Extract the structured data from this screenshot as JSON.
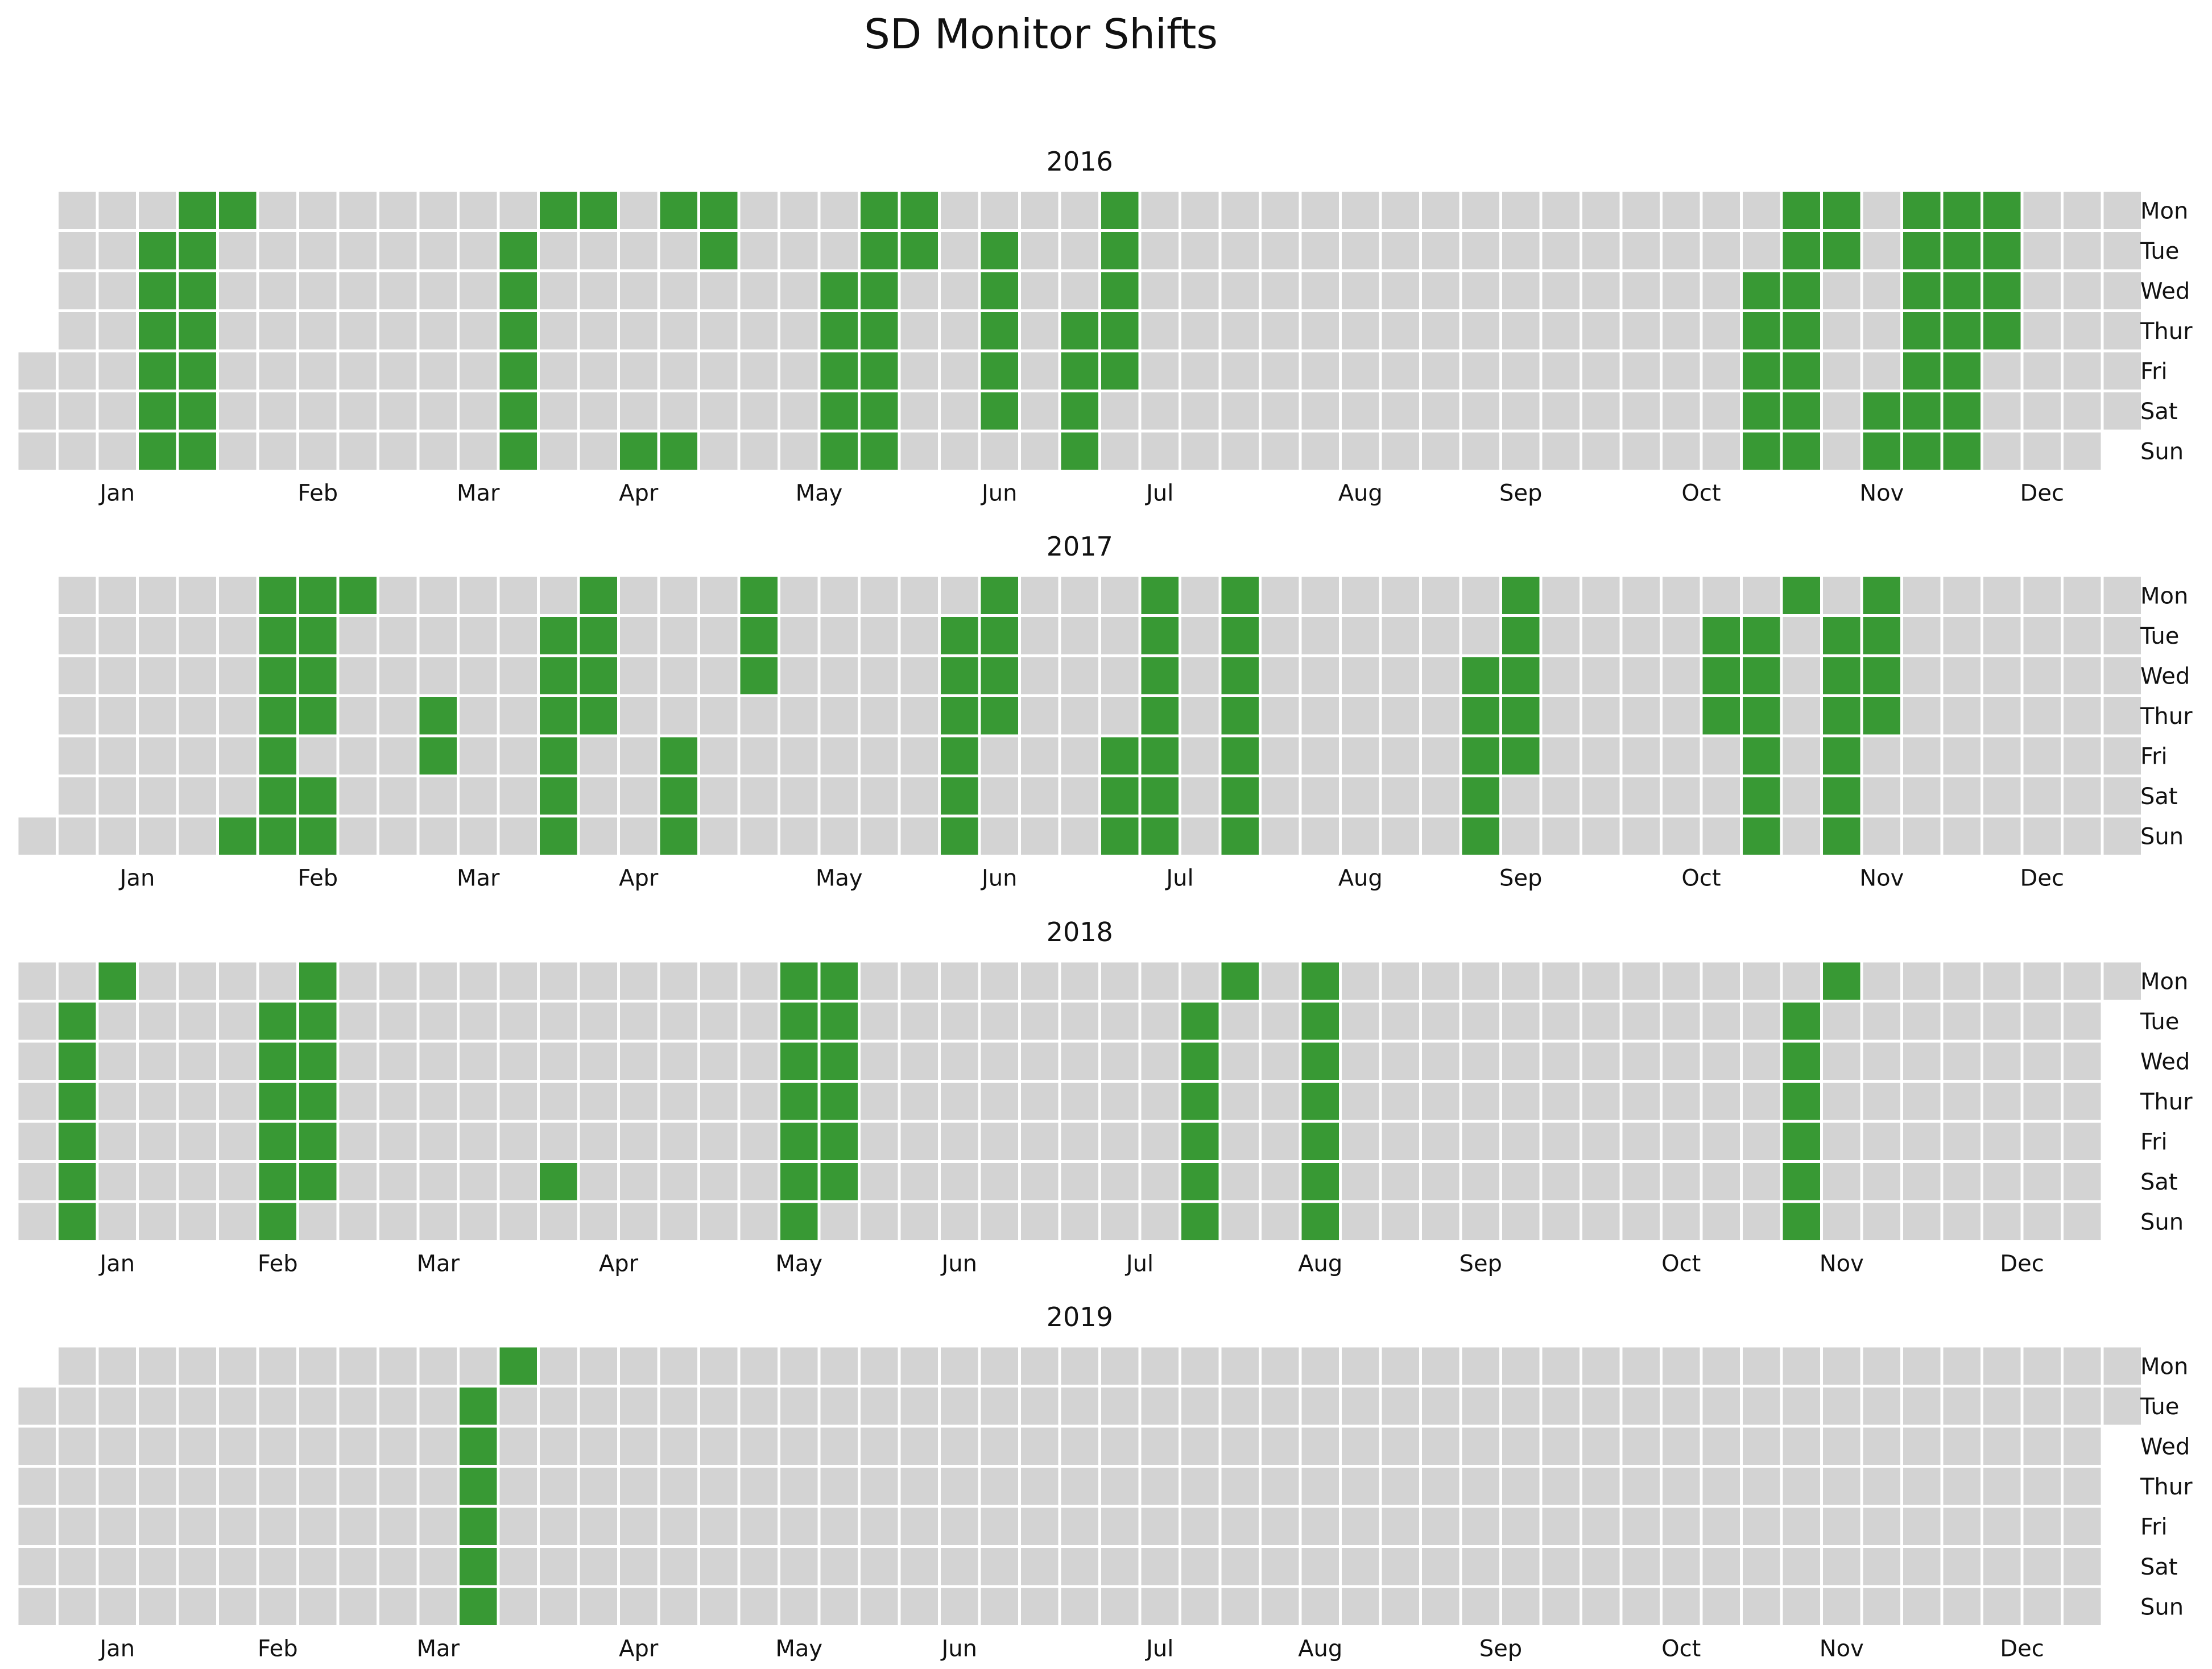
{
  "chart_data": {
    "type": "heatmap",
    "title": "SD Monitor Shifts",
    "colors": {
      "shift": "#389934",
      "no_shift": "#d3d3d3",
      "cell_border": "#ffffff"
    },
    "weekday_labels": [
      "Mon",
      "Tue",
      "Wed",
      "Thur",
      "Fri",
      "Sat",
      "Sun"
    ],
    "month_labels": [
      "Jan",
      "Feb",
      "Mar",
      "Apr",
      "May",
      "Jun",
      "Jul",
      "Aug",
      "Sep",
      "Oct",
      "Nov",
      "Dec"
    ],
    "calendars": [
      {
        "year": "2016",
        "shift_days": [
          "2016-01-19",
          "2016-01-20",
          "2016-01-21",
          "2016-01-22",
          "2016-01-23",
          "2016-01-24",
          "2016-01-25",
          "2016-01-26",
          "2016-01-27",
          "2016-01-28",
          "2016-01-29",
          "2016-01-30",
          "2016-01-31",
          "2016-02-01",
          "2016-03-22",
          "2016-03-23",
          "2016-03-24",
          "2016-03-25",
          "2016-03-26",
          "2016-03-27",
          "2016-03-28",
          "2016-04-04",
          "2016-04-17",
          "2016-04-24",
          "2016-04-18",
          "2016-04-25",
          "2016-04-26",
          "2016-05-18",
          "2016-05-19",
          "2016-05-20",
          "2016-05-21",
          "2016-05-22",
          "2016-05-23",
          "2016-05-24",
          "2016-05-25",
          "2016-05-26",
          "2016-05-27",
          "2016-05-28",
          "2016-05-29",
          "2016-05-30",
          "2016-05-31",
          "2016-06-14",
          "2016-06-15",
          "2016-06-16",
          "2016-06-17",
          "2016-06-18",
          "2016-06-30",
          "2016-07-01",
          "2016-07-02",
          "2016-07-03",
          "2016-07-04",
          "2016-07-05",
          "2016-07-06",
          "2016-07-07",
          "2016-07-08",
          "2016-10-26",
          "2016-10-27",
          "2016-10-28",
          "2016-10-29",
          "2016-10-30",
          "2016-10-31",
          "2016-11-01",
          "2016-11-02",
          "2016-11-03",
          "2016-11-04",
          "2016-11-05",
          "2016-11-06",
          "2016-11-07",
          "2016-11-08",
          "2016-11-19",
          "2016-11-20",
          "2016-11-21",
          "2016-11-22",
          "2016-11-23",
          "2016-11-24",
          "2016-11-25",
          "2016-11-26",
          "2016-11-27",
          "2016-11-28",
          "2016-11-29",
          "2016-11-30",
          "2016-12-01",
          "2016-12-02",
          "2016-12-03",
          "2016-12-04",
          "2016-12-05",
          "2016-12-06",
          "2016-12-07",
          "2016-12-08"
        ]
      },
      {
        "year": "2017",
        "shift_days": [
          "2017-02-05",
          "2017-02-06",
          "2017-02-07",
          "2017-02-08",
          "2017-02-09",
          "2017-02-10",
          "2017-02-11",
          "2017-02-12",
          "2017-02-13",
          "2017-02-14",
          "2017-02-15",
          "2017-02-16",
          "2017-02-18",
          "2017-02-19",
          "2017-02-20",
          "2017-03-09",
          "2017-03-10",
          "2017-03-28",
          "2017-03-29",
          "2017-03-30",
          "2017-03-31",
          "2017-04-01",
          "2017-04-02",
          "2017-04-03",
          "2017-04-04",
          "2017-04-05",
          "2017-04-06",
          "2017-04-21",
          "2017-04-22",
          "2017-04-23",
          "2017-05-01",
          "2017-05-02",
          "2017-05-03",
          "2017-06-06",
          "2017-06-07",
          "2017-06-08",
          "2017-06-09",
          "2017-06-10",
          "2017-06-11",
          "2017-06-12",
          "2017-06-13",
          "2017-06-14",
          "2017-06-15",
          "2017-07-07",
          "2017-07-08",
          "2017-07-09",
          "2017-07-10",
          "2017-07-11",
          "2017-07-12",
          "2017-07-13",
          "2017-07-14",
          "2017-07-15",
          "2017-07-16",
          "2017-07-24",
          "2017-07-25",
          "2017-07-26",
          "2017-07-27",
          "2017-07-28",
          "2017-07-29",
          "2017-07-30",
          "2017-09-06",
          "2017-09-07",
          "2017-09-08",
          "2017-09-09",
          "2017-09-10",
          "2017-09-11",
          "2017-09-12",
          "2017-09-13",
          "2017-09-14",
          "2017-09-15",
          "2017-10-17",
          "2017-10-18",
          "2017-10-19",
          "2017-10-24",
          "2017-10-25",
          "2017-10-26",
          "2017-10-27",
          "2017-10-28",
          "2017-10-29",
          "2017-10-30",
          "2017-11-07",
          "2017-11-08",
          "2017-11-09",
          "2017-11-10",
          "2017-11-11",
          "2017-11-12",
          "2017-11-13",
          "2017-11-14",
          "2017-11-15",
          "2017-11-16"
        ]
      },
      {
        "year": "2018",
        "shift_days": [
          "2018-01-09",
          "2018-01-10",
          "2018-01-11",
          "2018-01-12",
          "2018-01-13",
          "2018-01-14",
          "2018-01-15",
          "2018-02-13",
          "2018-02-14",
          "2018-02-15",
          "2018-02-16",
          "2018-02-17",
          "2018-02-18",
          "2018-02-19",
          "2018-02-20",
          "2018-02-21",
          "2018-02-22",
          "2018-02-23",
          "2018-02-24",
          "2018-04-07",
          "2018-05-14",
          "2018-05-15",
          "2018-05-16",
          "2018-05-17",
          "2018-05-18",
          "2018-05-19",
          "2018-05-20",
          "2018-05-21",
          "2018-05-22",
          "2018-05-23",
          "2018-05-24",
          "2018-05-25",
          "2018-05-26",
          "2018-07-24",
          "2018-07-25",
          "2018-07-26",
          "2018-07-27",
          "2018-07-28",
          "2018-07-29",
          "2018-07-30",
          "2018-08-13",
          "2018-08-14",
          "2018-08-15",
          "2018-08-16",
          "2018-08-17",
          "2018-08-18",
          "2018-08-19",
          "2018-11-06",
          "2018-11-07",
          "2018-11-08",
          "2018-11-09",
          "2018-11-10",
          "2018-11-11",
          "2018-11-12"
        ]
      },
      {
        "year": "2019",
        "shift_days": [
          "2019-03-19",
          "2019-03-20",
          "2019-03-21",
          "2019-03-22",
          "2019-03-23",
          "2019-03-24",
          "2019-03-25"
        ]
      }
    ]
  }
}
